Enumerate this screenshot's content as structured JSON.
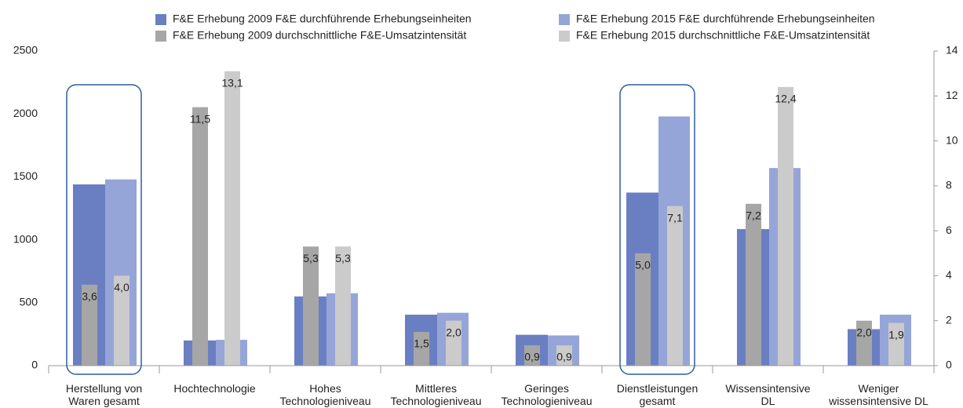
{
  "chart_data": {
    "type": "bar",
    "categories": [
      "Herstellung von\nWaren gesamt",
      "Hochtechnologie",
      "Hohes\nTechnologieniveau",
      "Mittleres\nTechnologieniveau",
      "Geringes\nTechnologieniveau",
      "Dienstleistungen\ngesamt",
      "Wissensintensive\nDL",
      "Weniger\nwissensintensive DL"
    ],
    "series": [
      {
        "name": "F&E Erhebung 2009 F&E durchführende Erhebungseinheiten",
        "color": "#6a7fc1",
        "values": [
          1440,
          200,
          550,
          405,
          245,
          1375,
          1085,
          290
        ]
      },
      {
        "name": "F&E Erhebung 2015 F&E durchführende Erhebungseinheiten",
        "color": "#96a5d8",
        "values": [
          1480,
          205,
          575,
          420,
          240,
          1980,
          1570,
          405
        ]
      },
      {
        "name": "F&E Erhebung 2009 durchschnittliche F&E-Umsatzintensität",
        "color": "#a6a6a6",
        "axis": "y2",
        "values": [
          3.6,
          11.5,
          5.3,
          1.5,
          0.9,
          5.0,
          7.2,
          2.0
        ],
        "value_labels": [
          "3,6",
          "11,5",
          "5,3",
          "1,5",
          "0,9",
          "5,0",
          "7,2",
          "2,0"
        ]
      },
      {
        "name": "F&E Erhebung 2015 durchschnittliche F&E-Umsatzintensität",
        "color": "#cbcbcb",
        "axis": "y2",
        "values": [
          4.0,
          13.1,
          5.3,
          2.0,
          0.9,
          7.1,
          12.4,
          1.9
        ],
        "value_labels": [
          "4,0",
          "13,1",
          "5,3",
          "2,0",
          "0,9",
          "7,1",
          "12,4",
          "1,9"
        ]
      }
    ],
    "ylim": [
      0,
      2500
    ],
    "yticks": [
      0,
      500,
      1000,
      1500,
      2000,
      2500
    ],
    "y2lim": [
      0,
      14
    ],
    "y2ticks": [
      0,
      2,
      4,
      6,
      8,
      10,
      12,
      14
    ],
    "legend": "top"
  }
}
